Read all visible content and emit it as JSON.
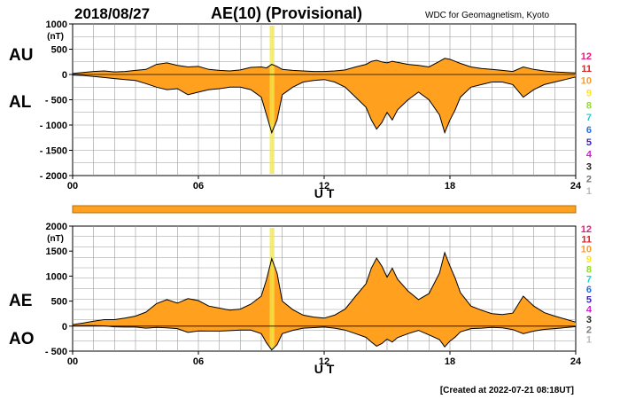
{
  "header": {
    "date": "2018/08/27",
    "title": "AE(10) (Provisional)",
    "source": "WDC for Geomagnetism, Kyoto",
    "created": "[Created at 2022-07-21 08:18UT]"
  },
  "colors": {
    "fill": "#ffa01e",
    "line": "#000000",
    "grid": "#9a9a9a",
    "highlight": "#f0e84a"
  },
  "station_scale": [
    {
      "label": "12",
      "color": "#e8197a"
    },
    {
      "label": "11",
      "color": "#e0201e"
    },
    {
      "label": "10",
      "color": "#ff9a1e"
    },
    {
      "label": "9",
      "color": "#ffe21e"
    },
    {
      "label": "8",
      "color": "#8ee01e"
    },
    {
      "label": "7",
      "color": "#1ed0d8"
    },
    {
      "label": "6",
      "color": "#1e70e8"
    },
    {
      "label": "5",
      "color": "#3a1ec8"
    },
    {
      "label": "4",
      "color": "#d01ed0"
    },
    {
      "label": "3",
      "color": "#222222"
    },
    {
      "label": "2",
      "color": "#777777"
    },
    {
      "label": "1",
      "color": "#bbbbbb"
    }
  ],
  "chart_data": [
    {
      "type": "area",
      "name": "AU/AL",
      "labels_left": [
        "AU",
        "AL"
      ],
      "ylabel": "(nT)",
      "xlabel": "U T",
      "xlim": [
        0,
        24
      ],
      "ylim": [
        -2000,
        1000
      ],
      "xticks": [
        {
          "v": 0,
          "t": "00"
        },
        {
          "v": 6,
          "t": "06"
        },
        {
          "v": 12,
          "t": "12"
        },
        {
          "v": 18,
          "t": "18"
        },
        {
          "v": 24,
          "t": "24"
        }
      ],
      "yticks": [
        {
          "v": 1000,
          "t": "1000"
        },
        {
          "v": 500,
          "t": "500"
        },
        {
          "v": 0,
          "t": "0"
        },
        {
          "v": -500,
          "t": "- 500"
        },
        {
          "v": -1000,
          "t": "- 1000"
        },
        {
          "v": -1500,
          "t": "- 1500"
        },
        {
          "v": -2000,
          "t": "- 2000"
        }
      ],
      "x": [
        0,
        0.5,
        1,
        1.5,
        2,
        2.5,
        3,
        3.5,
        4,
        4.5,
        5,
        5.5,
        6,
        6.5,
        7,
        7.5,
        8,
        8.5,
        9,
        9.25,
        9.5,
        9.75,
        10,
        10.5,
        11,
        11.5,
        12,
        12.5,
        13,
        13.5,
        14,
        14.25,
        14.5,
        14.75,
        15,
        15.25,
        15.5,
        16,
        16.5,
        17,
        17.5,
        17.75,
        18,
        18.25,
        18.5,
        19,
        19.5,
        20,
        20.5,
        21,
        21.5,
        22,
        22.5,
        23,
        23.5,
        24
      ],
      "series": [
        {
          "name": "AU",
          "values": [
            20,
            40,
            60,
            70,
            50,
            60,
            80,
            100,
            200,
            230,
            180,
            150,
            160,
            100,
            80,
            70,
            90,
            140,
            150,
            130,
            200,
            160,
            100,
            80,
            70,
            60,
            60,
            70,
            90,
            150,
            200,
            260,
            280,
            250,
            230,
            260,
            240,
            200,
            180,
            150,
            260,
            320,
            300,
            260,
            220,
            150,
            120,
            100,
            80,
            60,
            150,
            100,
            70,
            50,
            40,
            30
          ]
        },
        {
          "name": "AL",
          "values": [
            -10,
            -20,
            -40,
            -60,
            -80,
            -100,
            -120,
            -180,
            -250,
            -300,
            -280,
            -400,
            -350,
            -300,
            -280,
            -250,
            -250,
            -300,
            -450,
            -800,
            -1150,
            -900,
            -400,
            -250,
            -150,
            -120,
            -100,
            -150,
            -250,
            -450,
            -650,
            -900,
            -1080,
            -950,
            -750,
            -900,
            -700,
            -500,
            -350,
            -500,
            -800,
            -1150,
            -900,
            -700,
            -450,
            -250,
            -200,
            -150,
            -150,
            -200,
            -450,
            -300,
            -200,
            -150,
            -100,
            -50
          ]
        }
      ]
    },
    {
      "type": "area",
      "name": "AE/AO",
      "labels_left": [
        "AE",
        "AO"
      ],
      "ylabel": "(nT)",
      "xlabel": "U T",
      "xlim": [
        0,
        24
      ],
      "ylim": [
        -500,
        2000
      ],
      "xticks": [
        {
          "v": 0,
          "t": "00"
        },
        {
          "v": 6,
          "t": "06"
        },
        {
          "v": 12,
          "t": "12"
        },
        {
          "v": 18,
          "t": "18"
        },
        {
          "v": 24,
          "t": "24"
        }
      ],
      "yticks": [
        {
          "v": 2000,
          "t": "2000"
        },
        {
          "v": 1500,
          "t": "1500"
        },
        {
          "v": 1000,
          "t": "1000"
        },
        {
          "v": 500,
          "t": "500"
        },
        {
          "v": 0,
          "t": "0"
        },
        {
          "v": -500,
          "t": "- 500"
        }
      ],
      "x": [
        0,
        0.5,
        1,
        1.5,
        2,
        2.5,
        3,
        3.5,
        4,
        4.5,
        5,
        5.5,
        6,
        6.5,
        7,
        7.5,
        8,
        8.5,
        9,
        9.25,
        9.5,
        9.75,
        10,
        10.5,
        11,
        11.5,
        12,
        12.5,
        13,
        13.5,
        14,
        14.25,
        14.5,
        14.75,
        15,
        15.25,
        15.5,
        16,
        16.5,
        17,
        17.5,
        17.75,
        18,
        18.25,
        18.5,
        19,
        19.5,
        20,
        20.5,
        21,
        21.5,
        22,
        22.5,
        23,
        23.5,
        24
      ],
      "series": [
        {
          "name": "AE",
          "values": [
            30,
            60,
            100,
            130,
            130,
            160,
            200,
            280,
            450,
            530,
            460,
            550,
            510,
            400,
            360,
            320,
            340,
            440,
            600,
            930,
            1350,
            1060,
            500,
            330,
            220,
            180,
            160,
            220,
            340,
            600,
            850,
            1160,
            1360,
            1200,
            980,
            1160,
            940,
            700,
            530,
            650,
            1060,
            1470,
            1200,
            960,
            670,
            400,
            320,
            250,
            230,
            260,
            600,
            400,
            270,
            200,
            140,
            80
          ]
        },
        {
          "name": "AO",
          "values": [
            5,
            10,
            10,
            5,
            -15,
            -20,
            -20,
            -40,
            -25,
            -35,
            -50,
            -125,
            -95,
            -100,
            -100,
            -90,
            -80,
            -80,
            -150,
            -335,
            -475,
            -370,
            -150,
            -85,
            -40,
            -30,
            -20,
            -40,
            -80,
            -150,
            -225,
            -320,
            -400,
            -350,
            -260,
            -320,
            -230,
            -150,
            -85,
            -175,
            -270,
            -415,
            -300,
            -220,
            -115,
            -50,
            -40,
            -25,
            -35,
            -70,
            -150,
            -100,
            -65,
            -50,
            -30,
            -10
          ]
        }
      ]
    }
  ]
}
